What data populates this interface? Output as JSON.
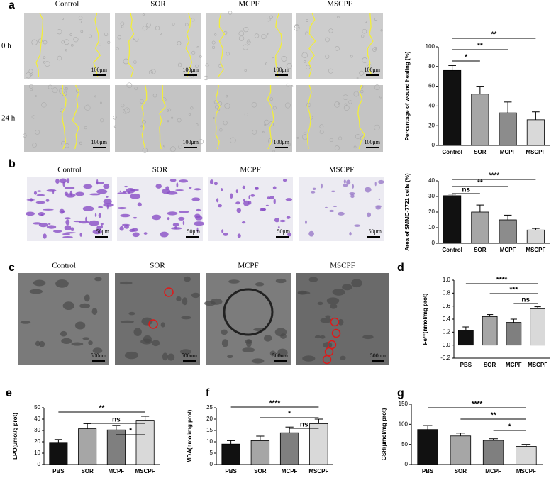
{
  "panels": [
    {
      "letter": "a",
      "columns": [
        "Control",
        "SOR",
        "MCPF",
        "MSCPF"
      ],
      "rows": [
        "0 h",
        "24 h"
      ],
      "scale_bar": "100μm"
    },
    {
      "letter": "b",
      "columns": [
        "Control",
        "SOR",
        "MCPF",
        "MSCPF"
      ],
      "scale_bar": "50μm"
    },
    {
      "letter": "c",
      "columns": [
        "Control",
        "SOR",
        "MCPF",
        "MSCPF"
      ],
      "scale_bar": "500nm"
    }
  ],
  "chart_data": [
    {
      "type": "bar",
      "y_label": "Percentage of wound healing (%)",
      "categories": [
        "Control",
        "SOR",
        "MCPF",
        "MSCPF"
      ],
      "values": [
        76,
        52,
        33,
        26
      ],
      "errors": [
        5,
        8,
        11,
        8
      ],
      "colors": [
        "#111111",
        "#a6a6a6",
        "#8c8c8c",
        "#d9d9d9"
      ],
      "ylim": [
        0,
        100
      ],
      "yticks": [
        0,
        20,
        40,
        60,
        80,
        100
      ],
      "annotations": [
        {
          "text": "*",
          "between": [
            "Control",
            "SOR"
          ]
        },
        {
          "text": "**",
          "between": [
            "Control",
            "MCPF"
          ]
        },
        {
          "text": "**",
          "between": [
            "Control",
            "MSCPF"
          ]
        }
      ]
    },
    {
      "type": "bar",
      "y_label": "Area of SMMC-7721 cells (%)",
      "categories": [
        "Control",
        "SOR",
        "MCPF",
        "MSCPF"
      ],
      "values": [
        30.5,
        20,
        15,
        8.5
      ],
      "errors": [
        1,
        4.5,
        3,
        1
      ],
      "colors": [
        "#111111",
        "#a6a6a6",
        "#8c8c8c",
        "#d9d9d9"
      ],
      "ylim": [
        0,
        40
      ],
      "yticks": [
        0,
        10,
        20,
        30,
        40
      ],
      "annotations": [
        {
          "text": "ns",
          "between": [
            "Control",
            "SOR"
          ]
        },
        {
          "text": "**",
          "between": [
            "Control",
            "MCPF"
          ]
        },
        {
          "text": "****",
          "between": [
            "Control",
            "MSCPF"
          ]
        }
      ]
    },
    {
      "type": "bar",
      "letter": "d",
      "y_label": "Fe²⁺(nmol/mg prot)",
      "categories": [
        "PBS",
        "SOR",
        "MCPF",
        "MSCPF"
      ],
      "values": [
        0.23,
        0.44,
        0.35,
        0.56
      ],
      "errors": [
        0.05,
        0.03,
        0.05,
        0.03
      ],
      "colors": [
        "#111111",
        "#a6a6a6",
        "#7f7f7f",
        "#d9d9d9"
      ],
      "ylim": [
        -0.2,
        1.0
      ],
      "yticks": [
        -0.2,
        {
          "value": 0,
          "label": "0.0"
        },
        0.2,
        0.4,
        0.6,
        0.8,
        {
          "value": 1,
          "label": "1.0"
        }
      ],
      "annotations": [
        {
          "text": "ns",
          "between": [
            "MCPF",
            "MSCPF"
          ]
        },
        {
          "text": "***",
          "between": [
            "SOR",
            "MSCPF"
          ]
        },
        {
          "text": "****",
          "between": [
            "PBS",
            "MSCPF"
          ]
        }
      ]
    },
    {
      "type": "bar",
      "letter": "e",
      "y_label": "LPO(μmol/g prot)",
      "categories": [
        "PBS",
        "SOR",
        "MCPF",
        "MSCPF"
      ],
      "values": [
        19.5,
        31.5,
        30.5,
        39
      ],
      "errors": [
        2.5,
        4.5,
        4,
        3.5
      ],
      "colors": [
        "#111111",
        "#a6a6a6",
        "#7f7f7f",
        "#d9d9d9"
      ],
      "ylim": [
        0,
        50
      ],
      "yticks": [
        0,
        10,
        20,
        30,
        40,
        50
      ],
      "annotations": [
        {
          "text": "*",
          "between": [
            "MCPF",
            "MSCPF"
          ]
        },
        {
          "text": "ns",
          "between": [
            "SOR",
            "MSCPF"
          ]
        },
        {
          "text": "**",
          "between": [
            "PBS",
            "MSCPF"
          ]
        }
      ]
    },
    {
      "type": "bar",
      "letter": "f",
      "y_label": "MDA(nmol/mg prot)",
      "categories": [
        "PBS",
        "SOR",
        "MCPF",
        "MSCPF"
      ],
      "values": [
        9,
        10.5,
        14,
        18
      ],
      "errors": [
        1.5,
        2,
        2.5,
        2
      ],
      "colors": [
        "#111111",
        "#a6a6a6",
        "#7f7f7f",
        "#d9d9d9"
      ],
      "ylim": [
        0,
        25
      ],
      "yticks": [
        0,
        5,
        10,
        15,
        20,
        25
      ],
      "annotations": [
        {
          "text": "ns",
          "between": [
            "MCPF",
            "MSCPF"
          ]
        },
        {
          "text": "*",
          "between": [
            "SOR",
            "MSCPF"
          ]
        },
        {
          "text": "****",
          "between": [
            "PBS",
            "MSCPF"
          ]
        }
      ]
    },
    {
      "type": "bar",
      "letter": "g",
      "y_label": "GSH(μmol/mg prot)",
      "categories": [
        "PBS",
        "SOR",
        "MCPF",
        "MSCPF"
      ],
      "values": [
        87,
        71,
        60,
        45
      ],
      "errors": [
        10,
        7,
        4,
        5
      ],
      "colors": [
        "#111111",
        "#a6a6a6",
        "#7f7f7f",
        "#d9d9d9"
      ],
      "ylim": [
        0,
        150
      ],
      "yticks": [
        0,
        50,
        100,
        150
      ],
      "annotations": [
        {
          "text": "*",
          "between": [
            "MCPF",
            "MSCPF"
          ]
        },
        {
          "text": "**",
          "between": [
            "SOR",
            "MSCPF"
          ]
        },
        {
          "text": "****",
          "between": [
            "PBS",
            "MSCPF"
          ]
        }
      ]
    }
  ]
}
